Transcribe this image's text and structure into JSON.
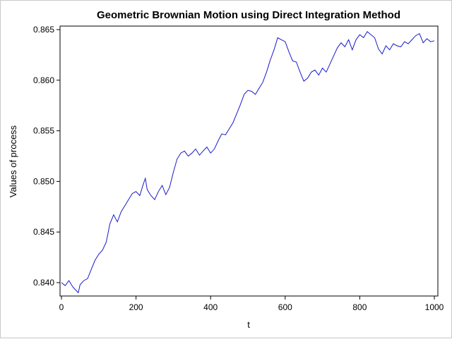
{
  "chart_data": {
    "type": "line",
    "title": "Geometric Brownian Motion using Direct Integration Method",
    "xlabel": "t",
    "ylabel": "Values of process",
    "xlim": [
      0,
      1000
    ],
    "ylim": [
      0.8385,
      0.8653
    ],
    "x_ticks": [
      "0",
      "200",
      "400",
      "600",
      "800",
      "1000"
    ],
    "y_ticks": [
      "0.840",
      "0.845",
      "0.850",
      "0.855",
      "0.860",
      "0.865"
    ],
    "grid": false,
    "legend": "none",
    "line_color": "#1a1acc",
    "series": [
      {
        "x": [
          0,
          10,
          20,
          30,
          40,
          45,
          50,
          60,
          70,
          80,
          90,
          100,
          110,
          120,
          130,
          140,
          150,
          160,
          170,
          180,
          190,
          200,
          210,
          220,
          225,
          230,
          240,
          250,
          260,
          270,
          280,
          290,
          300,
          310,
          320,
          330,
          340,
          350,
          360,
          370,
          380,
          390,
          400,
          410,
          420,
          430,
          440,
          450,
          460,
          470,
          480,
          490,
          500,
          510,
          520,
          530,
          540,
          550,
          560,
          570,
          580,
          590,
          600,
          610,
          620,
          630,
          640,
          650,
          660,
          670,
          680,
          690,
          700,
          710,
          720,
          730,
          740,
          750,
          760,
          770,
          780,
          790,
          800,
          810,
          820,
          830,
          840,
          850,
          860,
          870,
          880,
          890,
          900,
          910,
          920,
          930,
          940,
          950,
          960,
          970,
          980,
          990,
          1000
        ],
        "y": [
          0.84,
          0.8397,
          0.8402,
          0.8396,
          0.8392,
          0.839,
          0.8398,
          0.8402,
          0.8404,
          0.8413,
          0.8422,
          0.8428,
          0.8432,
          0.844,
          0.8458,
          0.8467,
          0.846,
          0.847,
          0.8476,
          0.8482,
          0.8488,
          0.849,
          0.8486,
          0.8498,
          0.8503,
          0.8492,
          0.8486,
          0.8482,
          0.849,
          0.8496,
          0.8487,
          0.8494,
          0.8509,
          0.8522,
          0.8528,
          0.853,
          0.8525,
          0.8528,
          0.8532,
          0.8526,
          0.853,
          0.8534,
          0.8528,
          0.8532,
          0.854,
          0.8547,
          0.8546,
          0.8552,
          0.8558,
          0.8567,
          0.8576,
          0.8586,
          0.859,
          0.8589,
          0.8586,
          0.8592,
          0.8598,
          0.8608,
          0.862,
          0.863,
          0.8642,
          0.864,
          0.8638,
          0.8628,
          0.8619,
          0.8618,
          0.8608,
          0.8599,
          0.8602,
          0.8608,
          0.861,
          0.8605,
          0.8612,
          0.8608,
          0.8616,
          0.8624,
          0.8632,
          0.8637,
          0.8633,
          0.864,
          0.863,
          0.864,
          0.8645,
          0.8642,
          0.8648,
          0.8645,
          0.8642,
          0.8631,
          0.8626,
          0.8634,
          0.863,
          0.8636,
          0.8634,
          0.8633,
          0.8638,
          0.8636,
          0.864,
          0.8644,
          0.8646,
          0.8637,
          0.8641,
          0.8638,
          0.8639
        ]
      }
    ]
  }
}
